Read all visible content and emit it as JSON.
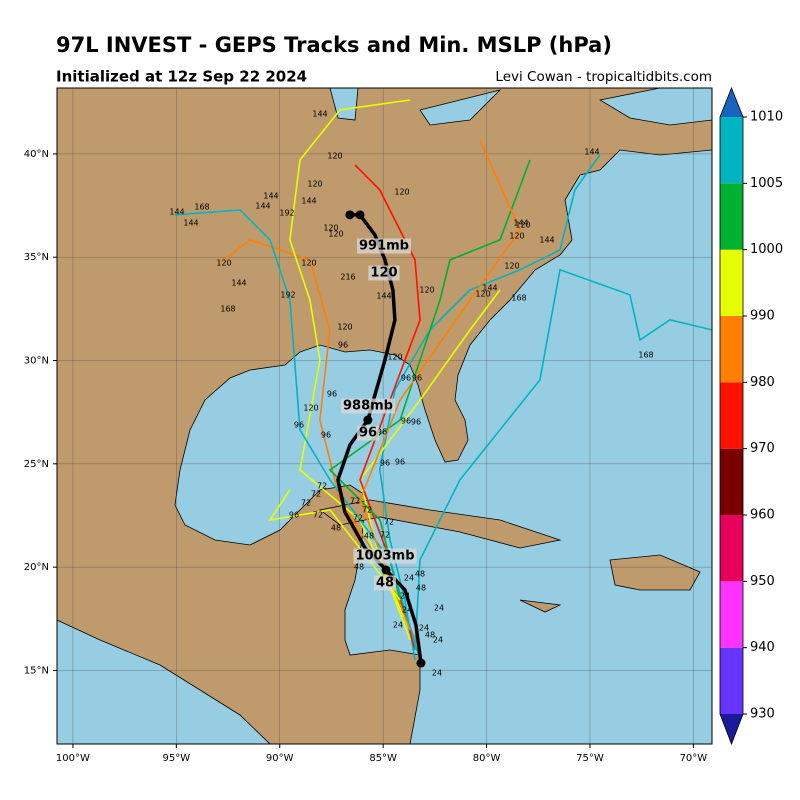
{
  "chart_data": {
    "type": "map",
    "title": "97L INVEST - GEPS Tracks and Min. MSLP (hPa)",
    "subtitle": "Initialized at 12z Sep 22 2024",
    "credit": "Levi Cowan - tropicaltidbits.com",
    "xlim": [
      -100.77,
      -69.1
    ],
    "ylim": [
      11.44,
      43.19
    ],
    "xticks": [
      {
        "value": -100,
        "label": "100°W"
      },
      {
        "value": -95,
        "label": "95°W"
      },
      {
        "value": -90,
        "label": "90°W"
      },
      {
        "value": -85,
        "label": "85°W"
      },
      {
        "value": -80,
        "label": "80°W"
      },
      {
        "value": -75,
        "label": "75°W"
      },
      {
        "value": -70,
        "label": "70°W"
      }
    ],
    "yticks": [
      {
        "value": 15,
        "label": "15°N"
      },
      {
        "value": 20,
        "label": "20°N"
      },
      {
        "value": 25,
        "label": "25°N"
      },
      {
        "value": 30,
        "label": "30°N"
      },
      {
        "value": 35,
        "label": "35°N"
      },
      {
        "value": 40,
        "label": "40°N"
      }
    ],
    "grid": true,
    "mean_track": {
      "color": "#000000",
      "lon": [
        -83.17,
        -83.41,
        -83.95,
        -84.86,
        -85.88,
        -86.85,
        -87.19,
        -86.61,
        -85.74,
        -85.4,
        -84.91,
        -84.43,
        -84.53,
        -84.91,
        -85.4,
        -86.12,
        -86.61
      ],
      "lat": [
        15.36,
        17.2,
        18.9,
        19.86,
        20.93,
        22.67,
        24.22,
        25.91,
        27.12,
        28.33,
        30.03,
        31.96,
        33.42,
        34.87,
        36.08,
        37.05,
        37.05
      ]
    },
    "tracks": [
      {
        "color": "#00b4c0",
        "lon": [
          -83.46,
          -83.95,
          -84.67,
          -85.16,
          -84.43,
          -82.74,
          -80.8,
          -78.38,
          -76.45,
          -75.73,
          -74.52
        ],
        "lat": [
          15.51,
          18.41,
          21.32,
          24.71,
          28.58,
          31.48,
          33.42,
          34.39,
          35.35,
          38.26,
          39.95
        ]
      },
      {
        "color": "#ff7f00",
        "lon": [
          -83.22,
          -84.91,
          -87.09,
          -88.06,
          -87.58,
          -88.54,
          -91.44,
          -92.89
        ],
        "lat": [
          15.99,
          19.86,
          23.25,
          27.12,
          31.48,
          34.87,
          35.84,
          34.73
        ]
      },
      {
        "color": "#e6ff00",
        "lon": [
          -83.7,
          -85.15,
          -86.12,
          -83.22,
          -80.8,
          -79.35
        ],
        "lat": [
          16.48,
          20.35,
          24.22,
          28.09,
          31.48,
          33.42
        ]
      },
      {
        "color": "#ff1000",
        "lon": [
          -83.46,
          -84.67,
          -86.12,
          -84.67,
          -83.22,
          -83.46,
          -85.16,
          -86.36
        ],
        "lat": [
          15.99,
          20.35,
          24.22,
          28.09,
          31.96,
          34.87,
          38.26,
          39.47
        ]
      },
      {
        "color": "#00b030",
        "lon": [
          -83.95,
          -85.15,
          -87.57,
          -84.18,
          -82.25,
          -81.77,
          -79.35,
          -77.9
        ],
        "lat": [
          17.44,
          22.28,
          24.7,
          27.12,
          32.93,
          34.87,
          35.84,
          39.71
        ]
      },
      {
        "color": "#e6ff00",
        "lon": [
          -83.7,
          -86.12,
          -89.02,
          -88.06,
          -88.54,
          -89.51,
          -89.02,
          -87.09,
          -83.7
        ],
        "lat": [
          16.96,
          22.28,
          24.7,
          30.03,
          32.93,
          35.84,
          39.71,
          42.13,
          42.61
        ]
      },
      {
        "color": "#00b4c0",
        "lon": [
          -83.22,
          -84.67,
          -87.57,
          -89.02,
          -89.51,
          -90.47,
          -91.92,
          -95.07
        ],
        "lat": [
          15.51,
          20.35,
          24.22,
          26.64,
          32.93,
          35.84,
          37.29,
          37.05
        ]
      },
      {
        "color": "#00b4c0",
        "lon": [
          -83.46,
          -83.22,
          -81.29,
          -77.42,
          -76.45,
          -73.07,
          -72.58,
          -71.13,
          -69.1
        ],
        "lat": [
          15.99,
          20.35,
          24.22,
          29.06,
          34.39,
          33.18,
          31.0,
          31.97,
          31.48
        ]
      },
      {
        "color": "#ff7f00",
        "lon": [
          -83.7,
          -86.12,
          -84.18,
          -80.8,
          -78.38,
          -80.32
        ],
        "lat": [
          16.96,
          23.25,
          28.09,
          32.93,
          36.32,
          40.68
        ]
      },
      {
        "color": "#e6ff00",
        "lon": [
          -84.18,
          -87.57,
          -90.47,
          -89.51
        ],
        "lat": [
          18.41,
          22.77,
          22.28,
          23.74
        ]
      }
    ],
    "annotations": [
      "991mb",
      "120",
      "988mb",
      "96",
      "1003mb",
      "48"
    ],
    "hour_labels": [
      144,
      120,
      120,
      144,
      144,
      168,
      144,
      144,
      192,
      144,
      120,
      120,
      120,
      120,
      216,
      144,
      192,
      168,
      144,
      120,
      120,
      144,
      144,
      120,
      120,
      144,
      120,
      144,
      120,
      168,
      168,
      120,
      96,
      120,
      96,
      96,
      96,
      120,
      96,
      96,
      96,
      96,
      96,
      96,
      96,
      72,
      72,
      72,
      72,
      72,
      96,
      72,
      72,
      72,
      48,
      48,
      72,
      48,
      48,
      24,
      48,
      24,
      24,
      24,
      24,
      24,
      48,
      24,
      24
    ],
    "colorbar": {
      "levels": [
        930,
        940,
        950,
        960,
        970,
        980,
        990,
        1000,
        1005,
        1010
      ],
      "colors": [
        "#1a1a9a",
        "#6633ff",
        "#ff33ff",
        "#e6005a",
        "#7a0000",
        "#ff1000",
        "#ff7f00",
        "#e6ff00",
        "#00b030",
        "#00b4c0",
        "#1565c0"
      ]
    }
  }
}
